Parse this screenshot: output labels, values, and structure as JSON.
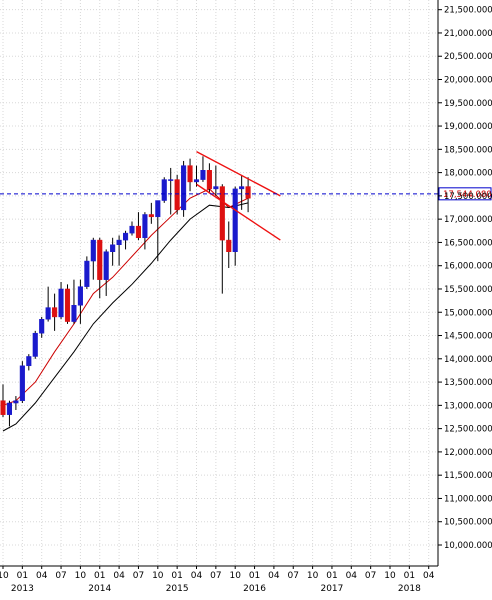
{
  "chart_data": {
    "type": "candlestick",
    "title": "",
    "xlabel": "",
    "ylabel": "",
    "ylim": [
      9600000,
      22200000
    ],
    "grid": true,
    "y_ticks": [
      {
        "value": 10000000,
        "label": "10,000.000"
      },
      {
        "value": 10500000,
        "label": "10,500.000"
      },
      {
        "value": 11000000,
        "label": "11,000.000"
      },
      {
        "value": 11500000,
        "label": "11,500.000"
      },
      {
        "value": 12000000,
        "label": "12,000.000"
      },
      {
        "value": 12500000,
        "label": "12,500.000"
      },
      {
        "value": 13000000,
        "label": "13,000.000"
      },
      {
        "value": 13500000,
        "label": "13,500.000"
      },
      {
        "value": 14000000,
        "label": "14,000.000"
      },
      {
        "value": 14500000,
        "label": "14,500.000"
      },
      {
        "value": 15000000,
        "label": "15,000.000"
      },
      {
        "value": 15500000,
        "label": "15,500.000"
      },
      {
        "value": 16000000,
        "label": "16,000.000"
      },
      {
        "value": 16500000,
        "label": "16,500.000"
      },
      {
        "value": 17000000,
        "label": "17,000.000"
      },
      {
        "value": 17500000,
        "label": "17,500.000"
      },
      {
        "value": 18000000,
        "label": "18,000.000"
      },
      {
        "value": 18500000,
        "label": "18,500.000"
      },
      {
        "value": 19000000,
        "label": "19,000.000"
      },
      {
        "value": 19500000,
        "label": "19,500.000"
      },
      {
        "value": 20000000,
        "label": "20,000.000"
      },
      {
        "value": 20500000,
        "label": "20,500.000"
      },
      {
        "value": 21000000,
        "label": "21,000.000"
      },
      {
        "value": 21500000,
        "label": "21,500.000"
      }
    ],
    "x_ticks": [
      {
        "month": "2012-10",
        "label": "10"
      },
      {
        "month": "2013-01",
        "label": "01"
      },
      {
        "month": "2013-04",
        "label": "04"
      },
      {
        "month": "2013-07",
        "label": "07"
      },
      {
        "month": "2013-10",
        "label": "10"
      },
      {
        "month": "2014-01",
        "label": "01"
      },
      {
        "month": "2014-04",
        "label": "04"
      },
      {
        "month": "2014-07",
        "label": "07"
      },
      {
        "month": "2014-10",
        "label": "10"
      },
      {
        "month": "2015-01",
        "label": "01"
      },
      {
        "month": "2015-04",
        "label": "04"
      },
      {
        "month": "2015-07",
        "label": "07"
      },
      {
        "month": "2015-10",
        "label": "10"
      },
      {
        "month": "2016-01",
        "label": "01"
      },
      {
        "month": "2016-04",
        "label": "04"
      },
      {
        "month": "2016-07",
        "label": "07"
      },
      {
        "month": "2016-10",
        "label": "10"
      },
      {
        "month": "2017-01",
        "label": "01"
      },
      {
        "month": "2017-04",
        "label": "04"
      },
      {
        "month": "2017-07",
        "label": "07"
      },
      {
        "month": "2017-10",
        "label": "10"
      },
      {
        "month": "2018-01",
        "label": "01"
      },
      {
        "month": "2018-04",
        "label": "04"
      }
    ],
    "year_labels": [
      {
        "month": "2013-01",
        "label": "2013"
      },
      {
        "month": "2014-01",
        "label": "2014"
      },
      {
        "month": "2015-01",
        "label": "2015"
      },
      {
        "month": "2016-01",
        "label": "2016"
      },
      {
        "month": "2017-01",
        "label": "2017"
      },
      {
        "month": "2018-01",
        "label": "2018"
      }
    ],
    "candles": [
      {
        "month": "2012-10",
        "open": 13100000,
        "high": 13450000,
        "low": 12750000,
        "close": 12800000
      },
      {
        "month": "2012-11",
        "open": 12800000,
        "high": 13100000,
        "low": 12550000,
        "close": 13050000
      },
      {
        "month": "2012-12",
        "open": 13050000,
        "high": 13200000,
        "low": 12900000,
        "close": 13100000
      },
      {
        "month": "2013-01",
        "open": 13100000,
        "high": 13950000,
        "low": 13050000,
        "close": 13850000
      },
      {
        "month": "2013-02",
        "open": 13850000,
        "high": 14100000,
        "low": 13750000,
        "close": 14050000
      },
      {
        "month": "2013-03",
        "open": 14050000,
        "high": 14600000,
        "low": 14000000,
        "close": 14550000
      },
      {
        "month": "2013-04",
        "open": 14550000,
        "high": 14900000,
        "low": 14450000,
        "close": 14850000
      },
      {
        "month": "2013-05",
        "open": 14850000,
        "high": 15550000,
        "low": 14800000,
        "close": 15100000
      },
      {
        "month": "2013-06",
        "open": 15100000,
        "high": 15400000,
        "low": 14600000,
        "close": 14900000
      },
      {
        "month": "2013-07",
        "open": 14900000,
        "high": 15650000,
        "low": 14850000,
        "close": 15500000
      },
      {
        "month": "2013-08",
        "open": 15500000,
        "high": 15600000,
        "low": 14750000,
        "close": 14800000
      },
      {
        "month": "2013-09",
        "open": 14800000,
        "high": 15700000,
        "low": 14750000,
        "close": 15150000
      },
      {
        "month": "2013-10",
        "open": 15150000,
        "high": 15700000,
        "low": 14750000,
        "close": 15550000
      },
      {
        "month": "2013-11",
        "open": 15550000,
        "high": 16200000,
        "low": 15500000,
        "close": 16100000
      },
      {
        "month": "2013-12",
        "open": 16100000,
        "high": 16600000,
        "low": 15700000,
        "close": 16550000
      },
      {
        "month": "2014-01",
        "open": 16550000,
        "high": 16600000,
        "low": 15300000,
        "close": 15700000
      },
      {
        "month": "2014-02",
        "open": 15700000,
        "high": 16350000,
        "low": 15350000,
        "close": 16300000
      },
      {
        "month": "2014-03",
        "open": 16300000,
        "high": 16600000,
        "low": 16000000,
        "close": 16450000
      },
      {
        "month": "2014-04",
        "open": 16450000,
        "high": 16650000,
        "low": 16000000,
        "close": 16550000
      },
      {
        "month": "2014-05",
        "open": 16550000,
        "high": 16750000,
        "low": 16350000,
        "close": 16700000
      },
      {
        "month": "2014-06",
        "open": 16700000,
        "high": 16950000,
        "low": 16650000,
        "close": 16850000
      },
      {
        "month": "2014-07",
        "open": 16850000,
        "high": 17150000,
        "low": 16550000,
        "close": 16600000
      },
      {
        "month": "2014-08",
        "open": 16600000,
        "high": 17150000,
        "low": 16350000,
        "close": 17100000
      },
      {
        "month": "2014-09",
        "open": 17100000,
        "high": 17350000,
        "low": 16900000,
        "close": 17050000
      },
      {
        "month": "2014-10",
        "open": 17050000,
        "high": 17400000,
        "low": 16100000,
        "close": 17400000
      },
      {
        "month": "2014-11",
        "open": 17400000,
        "high": 17900000,
        "low": 17350000,
        "close": 17850000
      },
      {
        "month": "2014-12",
        "open": 17850000,
        "high": 18100000,
        "low": 17100000,
        "close": 17850000
      },
      {
        "month": "2015-01",
        "open": 17850000,
        "high": 17950000,
        "low": 17100000,
        "close": 17200000
      },
      {
        "month": "2015-02",
        "open": 17200000,
        "high": 18250000,
        "low": 17050000,
        "close": 18150000
      },
      {
        "month": "2015-03",
        "open": 18150000,
        "high": 18300000,
        "low": 17600000,
        "close": 17800000
      },
      {
        "month": "2015-04",
        "open": 17800000,
        "high": 18150000,
        "low": 17700000,
        "close": 17850000
      },
      {
        "month": "2015-05",
        "open": 17850000,
        "high": 18350000,
        "low": 17800000,
        "close": 18050000
      },
      {
        "month": "2015-06",
        "open": 18050000,
        "high": 18200000,
        "low": 17550000,
        "close": 17650000
      },
      {
        "month": "2015-07",
        "open": 17650000,
        "high": 18150000,
        "low": 17500000,
        "close": 17700000
      },
      {
        "month": "2015-08",
        "open": 17700000,
        "high": 17750000,
        "low": 15400000,
        "close": 16550000
      },
      {
        "month": "2015-09",
        "open": 16550000,
        "high": 16950000,
        "low": 15950000,
        "close": 16300000
      },
      {
        "month": "2015-10",
        "open": 16300000,
        "high": 17700000,
        "low": 16000000,
        "close": 17650000
      },
      {
        "month": "2015-11",
        "open": 17650000,
        "high": 17950000,
        "low": 17200000,
        "close": 17700000
      },
      {
        "month": "2015-12",
        "open": 17700000,
        "high": 17900000,
        "low": 17150000,
        "close": 17450000
      }
    ],
    "moving_averages": [
      {
        "color": "#cc0000",
        "points": [
          {
            "month": "2012-10",
            "value": 13000000
          },
          {
            "month": "2012-12",
            "value": 13100000
          },
          {
            "month": "2013-03",
            "value": 13500000
          },
          {
            "month": "2013-06",
            "value": 14150000
          },
          {
            "month": "2013-09",
            "value": 14750000
          },
          {
            "month": "2013-12",
            "value": 15400000
          },
          {
            "month": "2014-03",
            "value": 15750000
          },
          {
            "month": "2014-06",
            "value": 16200000
          },
          {
            "month": "2014-09",
            "value": 16650000
          },
          {
            "month": "2014-12",
            "value": 17050000
          },
          {
            "month": "2015-03",
            "value": 17450000
          },
          {
            "month": "2015-06",
            "value": 17650000
          },
          {
            "month": "2015-09",
            "value": 17250000
          },
          {
            "month": "2015-12",
            "value": 17450000
          }
        ]
      },
      {
        "color": "#000000",
        "points": [
          {
            "month": "2012-10",
            "value": 12450000
          },
          {
            "month": "2012-12",
            "value": 12600000
          },
          {
            "month": "2013-03",
            "value": 13050000
          },
          {
            "month": "2013-06",
            "value": 13600000
          },
          {
            "month": "2013-09",
            "value": 14150000
          },
          {
            "month": "2013-12",
            "value": 14750000
          },
          {
            "month": "2014-03",
            "value": 15200000
          },
          {
            "month": "2014-06",
            "value": 15600000
          },
          {
            "month": "2014-09",
            "value": 16050000
          },
          {
            "month": "2014-12",
            "value": 16550000
          },
          {
            "month": "2015-03",
            "value": 17000000
          },
          {
            "month": "2015-06",
            "value": 17300000
          },
          {
            "month": "2015-09",
            "value": 17250000
          },
          {
            "month": "2015-12",
            "value": 17350000
          }
        ]
      }
    ],
    "trendlines": [
      {
        "color": "#ee1111",
        "from": {
          "month": "2015-04",
          "value": 18450000
        },
        "to": {
          "month": "2016-05",
          "value": 17500000
        }
      },
      {
        "color": "#ee1111",
        "from": {
          "month": "2015-04",
          "value": 17750000
        },
        "to": {
          "month": "2016-05",
          "value": 16550000
        }
      }
    ],
    "current_price": {
      "value": 17544080,
      "label": "17,544.080",
      "color": "#0000cc"
    },
    "colors": {
      "up": "#1a1acc",
      "down": "#dd1111",
      "grid": "#d8d8d8",
      "axis": "#000000"
    }
  }
}
